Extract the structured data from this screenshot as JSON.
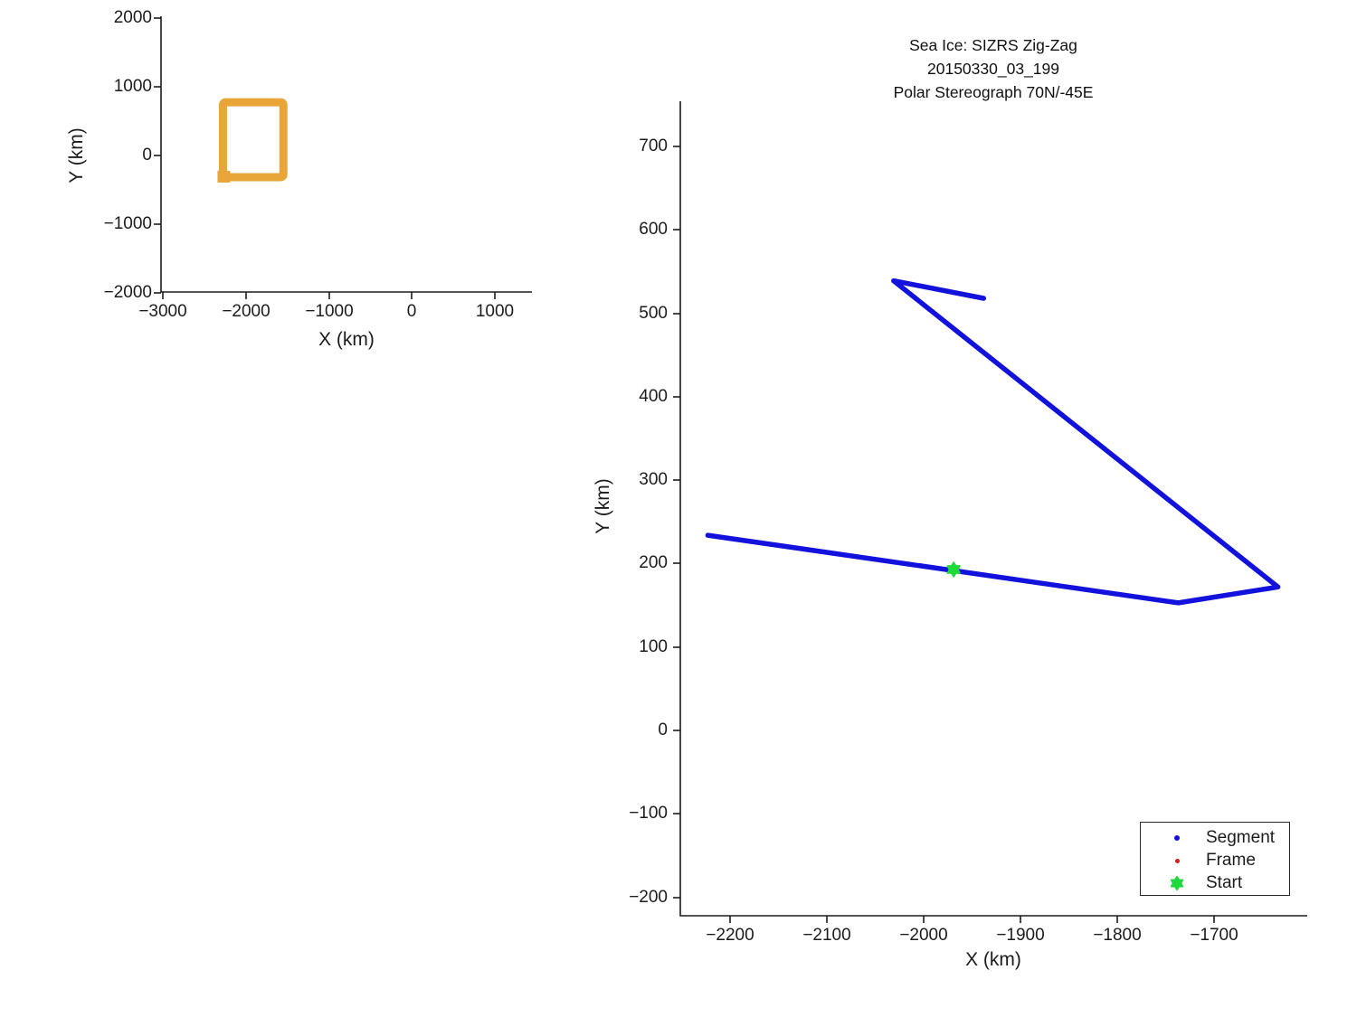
{
  "main_plot": {
    "title_lines": [
      "Sea Ice: SIZRS Zig-Zag",
      "20150330_03_199",
      "Polar Stereograph 70N/-45E"
    ],
    "xlabel": "X (km)",
    "ylabel": "Y (km)",
    "x_tick_labels": [
      "−2200",
      "−2100",
      "−2000",
      "−1900",
      "−1800",
      "−1700"
    ],
    "y_tick_labels": [
      "700",
      "600",
      "500",
      "400",
      "300",
      "200",
      "100",
      "0",
      "−100",
      "−200"
    ],
    "legend": {
      "items": [
        {
          "label": "Segment",
          "marker": "dot",
          "color": "#1212DC"
        },
        {
          "label": "Frame",
          "marker": "dot",
          "color": "#DE1A1A"
        },
        {
          "label": "Start",
          "marker": "star",
          "color": "#1FD93B"
        }
      ]
    }
  },
  "overview_plot": {
    "xlabel": "X (km)",
    "ylabel": "Y (km)",
    "x_tick_labels": [
      "−3000",
      "−2000",
      "−1000",
      "0",
      "1000"
    ],
    "y_tick_labels": [
      "2000",
      "1000",
      "0",
      "−1000",
      "−2000"
    ]
  },
  "colors": {
    "segment_blue": "#1212DC",
    "frame_red": "#DE1A1A",
    "start_green": "#1FD93B",
    "region_orange": "#E8A538",
    "axis": "#1c1c1c"
  },
  "chart_data": [
    {
      "id": "overview",
      "type": "line",
      "title": "",
      "xlabel": "X (km)",
      "ylabel": "Y (km)",
      "xlim": [
        -3050,
        1450
      ],
      "ylim": [
        -2000,
        2000
      ],
      "x_ticks": [
        -3000,
        -2000,
        -1000,
        0,
        1000
      ],
      "y_ticks": [
        -2000,
        -1000,
        0,
        1000,
        2000
      ],
      "grid": false,
      "series": [
        {
          "name": "flight-region-outline",
          "style": "thick rectangle outline",
          "color": "#E8A538",
          "x_range": [
            -2273,
            -1545
          ],
          "y_range": [
            -315,
            775
          ]
        }
      ]
    },
    {
      "id": "zigzag",
      "type": "line",
      "title": "Sea Ice: SIZRS Zig-Zag / 20150330_03_199 / Polar Stereograph 70N/-45E",
      "xlabel": "X (km)",
      "ylabel": "Y (km)",
      "xlim": [
        -2255,
        -1605
      ],
      "ylim": [
        -222,
        754
      ],
      "x_ticks": [
        -2200,
        -2100,
        -2000,
        -1900,
        -1800,
        -1700
      ],
      "y_ticks": [
        -200,
        -100,
        0,
        100,
        200,
        300,
        400,
        500,
        600,
        700
      ],
      "grid": false,
      "legend_position": "lower right",
      "series": [
        {
          "name": "Segment",
          "color": "#1212DC",
          "points": [
            [
              -2223,
              234
            ],
            [
              -1737,
              153
            ],
            [
              -1634,
              172
            ],
            [
              -2031,
              539
            ],
            [
              -1938,
              518
            ]
          ]
        },
        {
          "name": "Frame",
          "color": "#DE1A1A",
          "points": []
        },
        {
          "name": "Start",
          "color": "#1FD93B",
          "marker": "filled star",
          "points": [
            [
              -1969,
              193
            ]
          ]
        }
      ]
    }
  ]
}
